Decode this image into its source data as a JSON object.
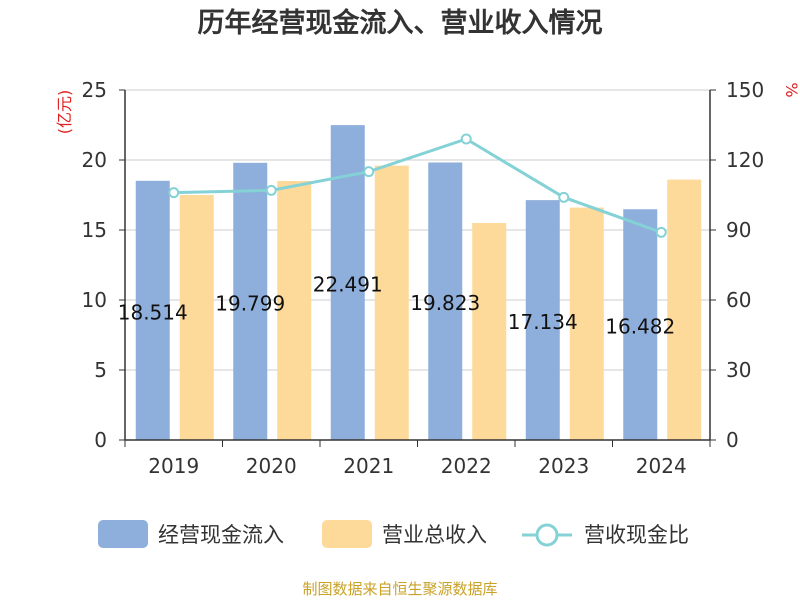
{
  "chart_data": {
    "type": "bar",
    "title": "历年经营现金流入、营业收入情况",
    "categories": [
      "2019",
      "2020",
      "2021",
      "2022",
      "2023",
      "2024"
    ],
    "y_left": {
      "unit": "(亿元)",
      "range": [
        0,
        25
      ],
      "ticks": [
        "0",
        "5",
        "10",
        "15",
        "20",
        "25"
      ]
    },
    "y_right": {
      "unit": "%",
      "range": [
        0,
        150
      ],
      "ticks": [
        "0",
        "30",
        "60",
        "90",
        "120",
        "150"
      ]
    },
    "series": [
      {
        "name": "经营现金流入",
        "type": "bar",
        "axis": "left",
        "color": "#8eaedb",
        "values": [
          18.514,
          19.799,
          22.491,
          19.823,
          17.134,
          16.482
        ],
        "labels": [
          "18.514",
          "19.799",
          "22.491",
          "19.823",
          "17.134",
          "16.482"
        ]
      },
      {
        "name": "营业总收入",
        "type": "bar",
        "axis": "left",
        "color": "#fdd99a",
        "values": [
          17.5,
          18.5,
          19.6,
          15.5,
          16.6,
          18.6
        ]
      },
      {
        "name": "营收现金比",
        "type": "line",
        "axis": "right",
        "color": "#85d2d6",
        "values": [
          106,
          107,
          115,
          129,
          104,
          89
        ]
      }
    ],
    "grid": true,
    "legend_position": "bottom",
    "source": "制图数据来自恒生聚源数据库"
  },
  "colors": {
    "title": "#333333",
    "unit": "#e02020",
    "source": "#c9a227",
    "grid": "#cccccc",
    "axis": "#333333"
  }
}
